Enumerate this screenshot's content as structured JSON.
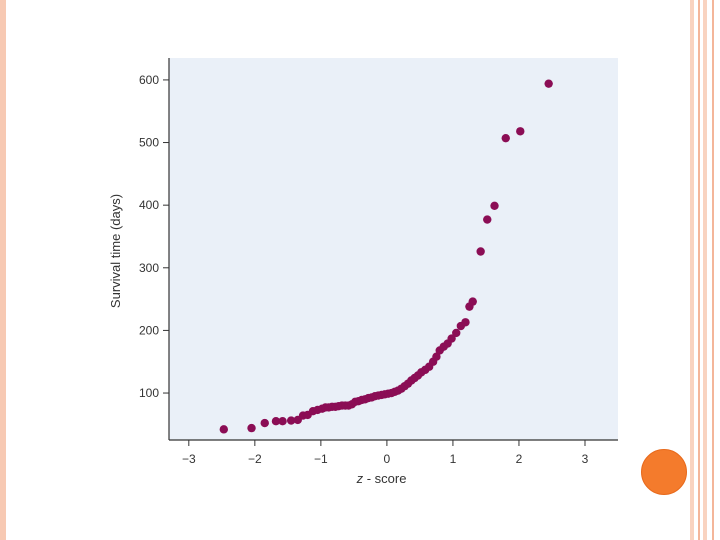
{
  "chart_data": {
    "type": "scatter",
    "title": "",
    "xlabel_var": "z",
    "xlabel_rest": " - score",
    "ylabel": "Survival time (days)",
    "xlim": [
      -3.3,
      3.5
    ],
    "ylim": [
      25,
      635
    ],
    "xticks": [
      -3,
      -2,
      -1,
      0,
      1,
      2,
      3
    ],
    "xtick_labels": [
      "−3",
      "−2",
      "−1",
      "0",
      "1",
      "2",
      "3"
    ],
    "yticks": [
      100,
      200,
      300,
      400,
      500,
      600
    ],
    "ytick_labels": [
      "100",
      "200",
      "300",
      "400",
      "500",
      "600"
    ],
    "grid": false,
    "plot_background": "#eaf0f8",
    "point_color": "#8b0d55",
    "points": [
      [
        -2.47,
        42
      ],
      [
        -2.05,
        44
      ],
      [
        -1.85,
        52
      ],
      [
        -1.68,
        55
      ],
      [
        -1.58,
        55
      ],
      [
        -1.45,
        56
      ],
      [
        -1.35,
        57
      ],
      [
        -1.27,
        64
      ],
      [
        -1.2,
        65
      ],
      [
        -1.12,
        71
      ],
      [
        -1.05,
        73
      ],
      [
        -0.98,
        75
      ],
      [
        -0.93,
        77
      ],
      [
        -0.88,
        77
      ],
      [
        -0.83,
        78
      ],
      [
        -0.78,
        78
      ],
      [
        -0.73,
        79
      ],
      [
        -0.68,
        80
      ],
      [
        -0.63,
        80
      ],
      [
        -0.58,
        80
      ],
      [
        -0.53,
        82
      ],
      [
        -0.48,
        86
      ],
      [
        -0.43,
        87
      ],
      [
        -0.38,
        89
      ],
      [
        -0.33,
        90
      ],
      [
        -0.28,
        92
      ],
      [
        -0.23,
        93
      ],
      [
        -0.18,
        95
      ],
      [
        -0.13,
        96
      ],
      [
        -0.08,
        97
      ],
      [
        -0.03,
        98
      ],
      [
        0.02,
        99
      ],
      [
        0.07,
        100
      ],
      [
        0.12,
        102
      ],
      [
        0.17,
        104
      ],
      [
        0.22,
        107
      ],
      [
        0.27,
        111
      ],
      [
        0.32,
        115
      ],
      [
        0.37,
        120
      ],
      [
        0.42,
        124
      ],
      [
        0.47,
        128
      ],
      [
        0.52,
        133
      ],
      [
        0.58,
        137
      ],
      [
        0.64,
        142
      ],
      [
        0.7,
        150
      ],
      [
        0.75,
        158
      ],
      [
        0.8,
        168
      ],
      [
        0.86,
        174
      ],
      [
        0.92,
        179
      ],
      [
        0.98,
        187
      ],
      [
        1.05,
        196
      ],
      [
        1.12,
        207
      ],
      [
        1.19,
        213
      ],
      [
        1.25,
        238
      ],
      [
        1.3,
        246
      ],
      [
        1.42,
        326
      ],
      [
        1.52,
        377
      ],
      [
        1.63,
        399
      ],
      [
        1.8,
        507
      ],
      [
        2.02,
        518
      ],
      [
        2.45,
        594
      ]
    ]
  }
}
